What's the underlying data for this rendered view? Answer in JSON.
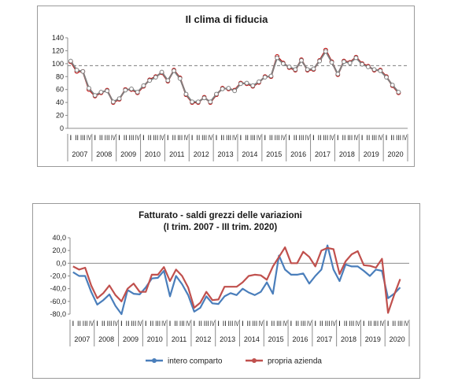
{
  "charts": [
    {
      "title_lines": [
        "Il clima di fiducia"
      ],
      "y_tick_labels": [
        "0",
        "20",
        "40",
        "60",
        "80",
        "100",
        "120",
        "140"
      ],
      "years": [
        "2007",
        "2008",
        "2009",
        "2010",
        "2011",
        "2012",
        "2013",
        "2014",
        "2015",
        "2016",
        "2017",
        "2018",
        "2019",
        "2020"
      ],
      "quarter_labels": [
        "I",
        "II",
        "III",
        "IV"
      ]
    },
    {
      "title_lines": [
        "Fatturato - saldi grezzi delle variazioni",
        "(I trim. 2007 - III trim. 2020)"
      ],
      "y_tick_labels": [
        "-80,0",
        "-60,0",
        "-40,0",
        "-20,0",
        "0,0",
        "20,0",
        "40,0"
      ],
      "years": [
        "2007",
        "2008",
        "2009",
        "2010",
        "2011",
        "2012",
        "2013",
        "2014",
        "2015",
        "2016",
        "2017",
        "2018",
        "2019",
        "2020"
      ],
      "quarter_labels": [
        "I",
        "II",
        "III",
        "IV"
      ],
      "legend": [
        "intero comparto",
        "propria azienda"
      ]
    }
  ],
  "chart_data": [
    {
      "type": "line",
      "title": "Il clima di fiducia",
      "ylim": [
        0,
        140
      ],
      "grid": false,
      "reference_line": 97,
      "categories": "quarters I 2007 - III 2020",
      "series": [
        {
          "color": "#c00000",
          "values": [
            103,
            88,
            88,
            60,
            50,
            55,
            59,
            40,
            45,
            60,
            60,
            55,
            65,
            75,
            80,
            86,
            73,
            90,
            78,
            52,
            40,
            40,
            48,
            40,
            52,
            62,
            61,
            59,
            70,
            69,
            65,
            71,
            80,
            80,
            111,
            101,
            94,
            90,
            106,
            90,
            91,
            105,
            121,
            103,
            83,
            104,
            102,
            110,
            100,
            96,
            90,
            90,
            80,
            66,
            55
          ]
        },
        {
          "color": "#7f7f7f",
          "values": [
            104,
            90,
            88,
            62,
            51,
            56,
            58,
            41,
            46,
            59,
            61,
            56,
            66,
            74,
            79,
            87,
            74,
            89,
            77,
            53,
            41,
            41,
            47,
            41,
            53,
            61,
            62,
            58,
            69,
            70,
            66,
            72,
            79,
            81,
            109,
            100,
            95,
            91,
            105,
            91,
            92,
            104,
            119,
            102,
            84,
            103,
            101,
            109,
            99,
            95,
            91,
            89,
            79,
            67,
            56
          ]
        }
      ]
    },
    {
      "type": "line",
      "title": "Fatturato - saldi grezzi delle variazioni",
      "subtitle": "(I trim. 2007 - III trim. 2020)",
      "ylim": [
        -80,
        40
      ],
      "grid": false,
      "legend_position": "bottom",
      "categories": "quarters I 2007 - III 2020",
      "series": [
        {
          "name": "intero comparto",
          "color": "#4a7ebb",
          "values": [
            -14,
            -20,
            -20,
            -45,
            -65,
            -58,
            -49,
            -67,
            -80,
            -42,
            -48,
            -49,
            -38,
            -24,
            -23,
            -12,
            -52,
            -20,
            -33,
            -50,
            -76,
            -70,
            -52,
            -63,
            -64,
            -52,
            -47,
            -50,
            -40,
            -46,
            -50,
            -45,
            -30,
            -48,
            12,
            -10,
            -18,
            -18,
            -16,
            -32,
            -20,
            -10,
            28,
            -10,
            -28,
            -2,
            -5,
            -5,
            -12,
            -20,
            -10,
            -12,
            -55,
            -48,
            -38
          ]
        },
        {
          "name": "propria azienda",
          "color": "#c0504d",
          "values": [
            -5,
            -10,
            -7,
            -35,
            -55,
            -47,
            -35,
            -50,
            -60,
            -40,
            -32,
            -45,
            -45,
            -18,
            -18,
            -6,
            -28,
            -10,
            -20,
            -38,
            -70,
            -62,
            -45,
            -58,
            -57,
            -37,
            -37,
            -37,
            -30,
            -20,
            -18,
            -19,
            -26,
            -5,
            10,
            25,
            0,
            0,
            18,
            10,
            -5,
            20,
            24,
            22,
            -17,
            3,
            14,
            19,
            -3,
            -4,
            -7,
            7,
            -78,
            -50,
            -25
          ]
        }
      ]
    }
  ]
}
